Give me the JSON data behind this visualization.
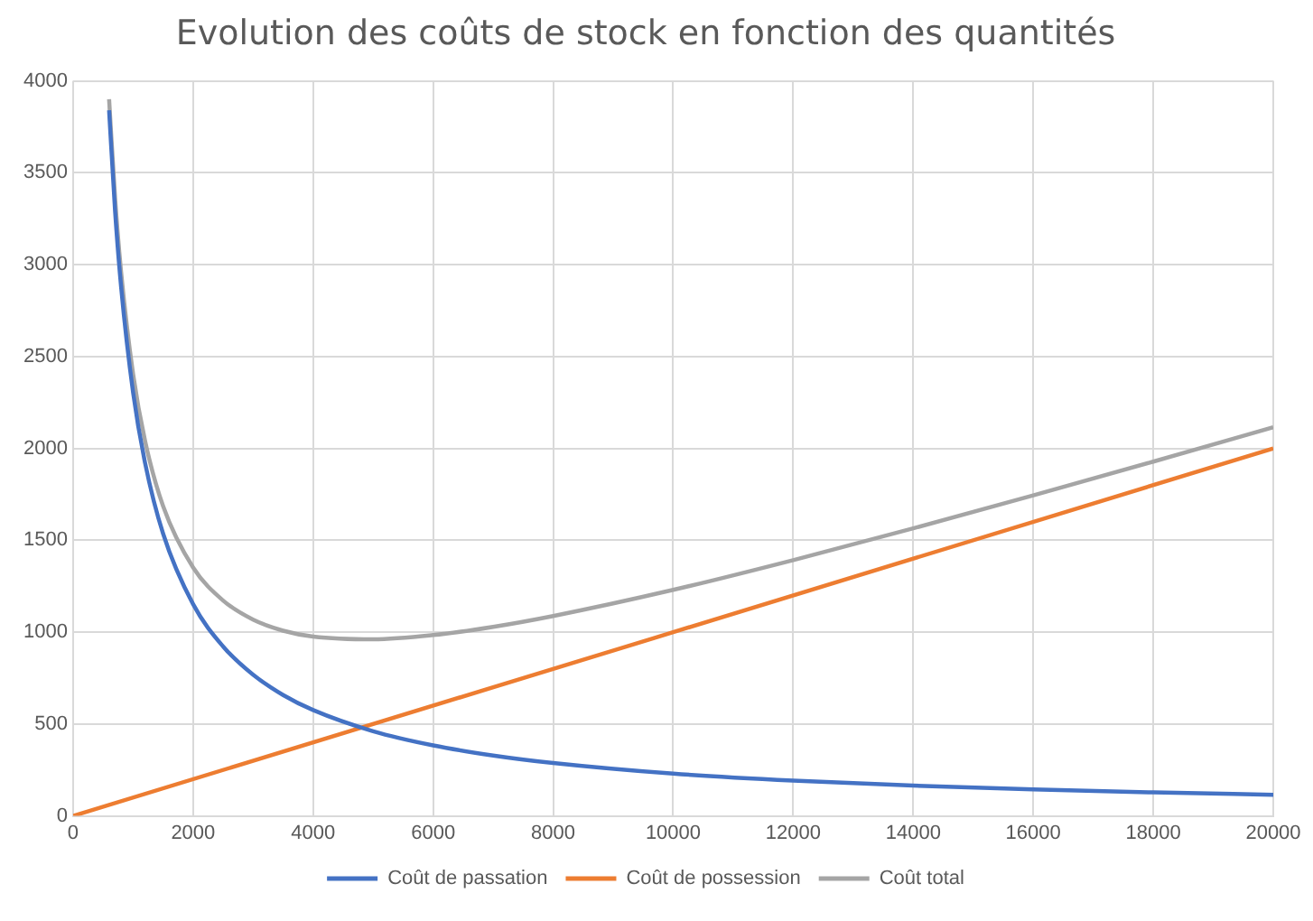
{
  "chart_data": {
    "type": "line",
    "title": "Evolution des coûts de stock en fonction des quantités",
    "xlim": [
      0,
      20000
    ],
    "xticks": [
      0,
      2000,
      4000,
      6000,
      8000,
      10000,
      12000,
      14000,
      16000,
      18000,
      20000
    ],
    "ylim": [
      0,
      4000
    ],
    "yticks": [
      0,
      500,
      1000,
      1500,
      2000,
      2500,
      3000,
      3500,
      4000
    ],
    "grid": true,
    "legend": "bottom",
    "marker": "none",
    "line_style": "solid",
    "series": [
      {
        "name": "Coût de passation",
        "color": "#4472c4",
        "x": [
          600,
          700,
          800,
          1000,
          1200,
          1500,
          2000,
          2500,
          3000,
          3500,
          4000,
          5000,
          6000,
          7000,
          8000,
          10000,
          12000,
          14000,
          16000,
          18000,
          20000
        ],
        "values": [
          3840,
          3291,
          2880,
          2304,
          1920,
          1536,
          1152,
          922,
          768,
          658,
          576,
          461,
          384,
          329,
          288,
          230,
          192,
          165,
          144,
          128,
          115
        ]
      },
      {
        "name": "Coût de possession",
        "color": "#ed7d31",
        "x": [
          0,
          20000
        ],
        "values": [
          0,
          2000
        ]
      },
      {
        "name": "Coût total",
        "color": "#a5a5a5",
        "x": [
          600,
          700,
          800,
          1000,
          1200,
          1500,
          2000,
          2500,
          3000,
          3500,
          4000,
          5000,
          6000,
          7000,
          8000,
          10000,
          12000,
          14000,
          16000,
          18000,
          20000
        ],
        "values": [
          3900,
          3361,
          2960,
          2404,
          2040,
          1686,
          1352,
          1172,
          1068,
          1008,
          976,
          961,
          984,
          1029,
          1088,
          1230,
          1392,
          1565,
          1744,
          1928,
          2115
        ]
      }
    ]
  }
}
